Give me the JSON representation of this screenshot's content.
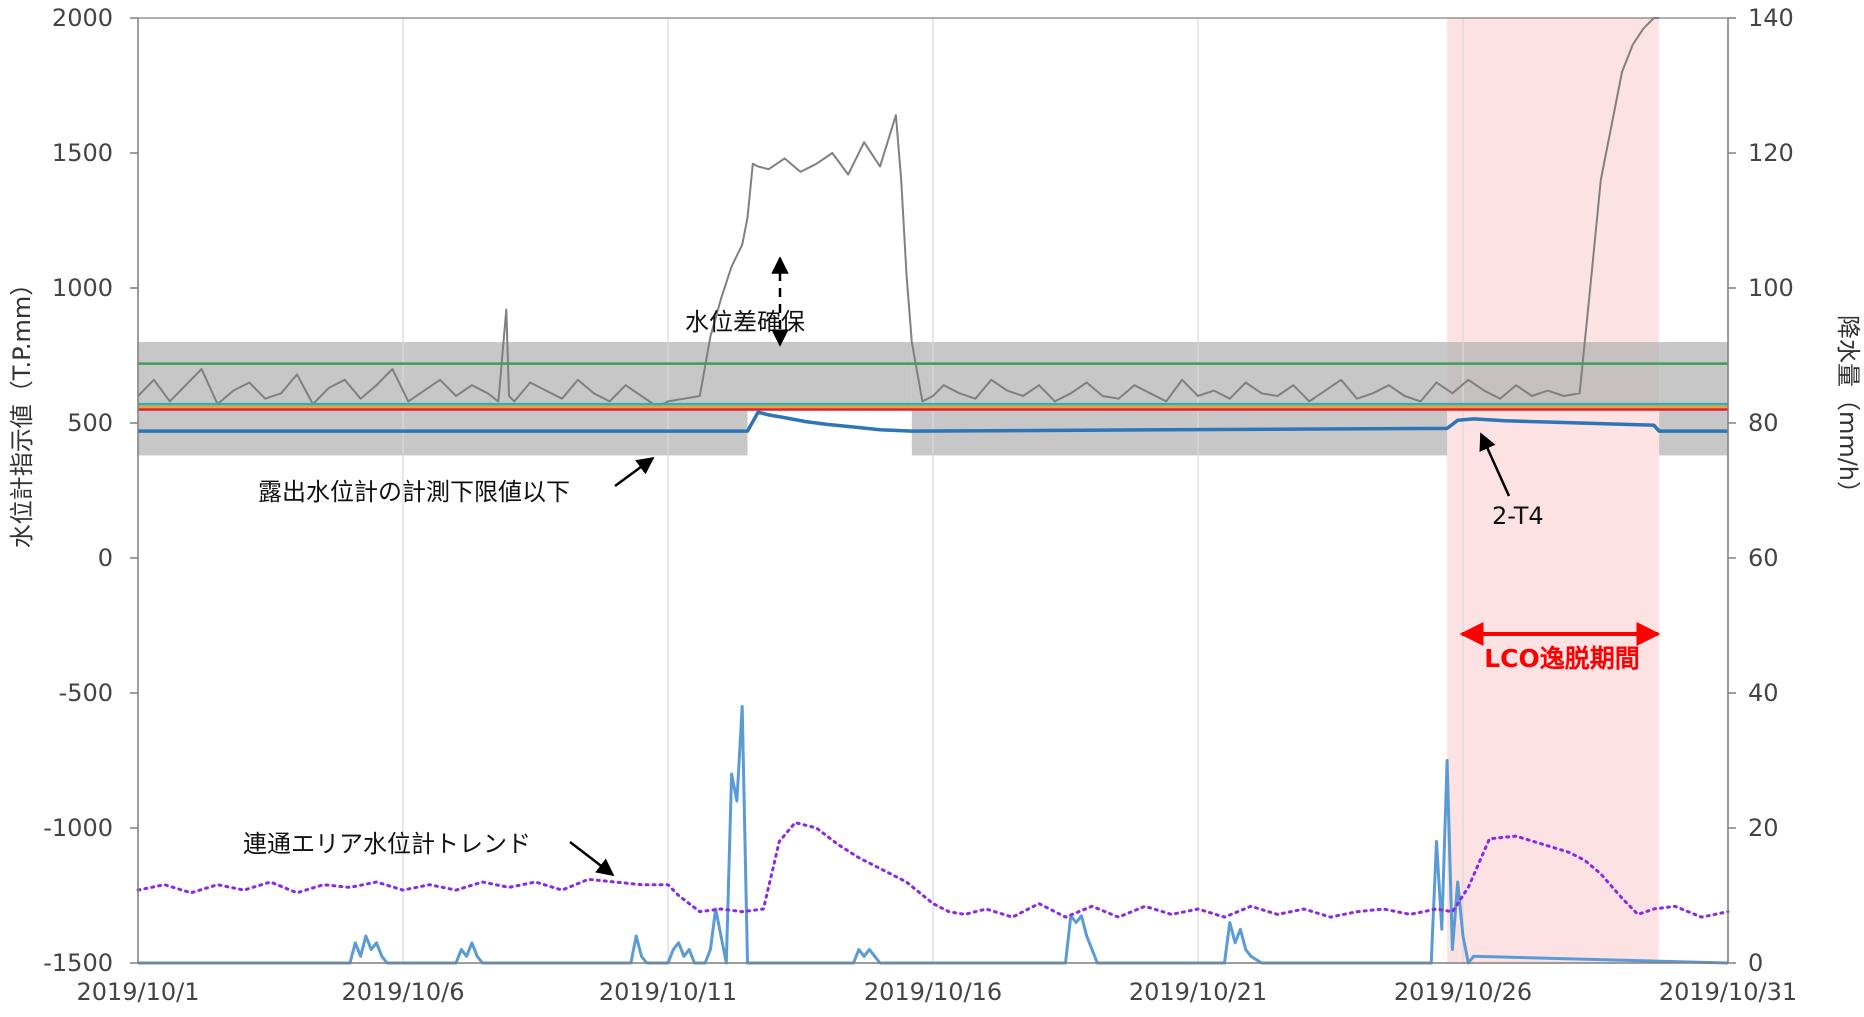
{
  "chart_data": {
    "type": "line",
    "title": "",
    "x_axis": {
      "type": "date",
      "range": [
        "2019/10/1",
        "2019/10/31"
      ],
      "tick_labels": [
        "2019/10/1",
        "2019/10/6",
        "2019/10/11",
        "2019/10/16",
        "2019/10/21",
        "2019/10/26",
        "2019/10/31"
      ],
      "grid": true
    },
    "y_left": {
      "label": "水位計指示値（T.P.mm）",
      "range": [
        -1500,
        2000
      ],
      "tick_labels": [
        "2000",
        "1500",
        "1000",
        "500",
        "0",
        "-500",
        "-1000",
        "-1500"
      ]
    },
    "y_right": {
      "label": "降水量（mm/h）",
      "range": [
        0,
        140
      ],
      "tick_labels": [
        "140",
        "120",
        "100",
        "80",
        "60",
        "40",
        "20",
        "0"
      ]
    },
    "colors": {
      "gray_line": "#808080",
      "green_line": "#3aa05a",
      "red_line": "#e02020",
      "orange_line": "#f0a040",
      "teal_line": "#30b0b0",
      "blue_line": "#2e75b6",
      "rain_line": "#5b9bd5",
      "trend_dots": "#8a2be2",
      "shade_band": "#b4b4b4",
      "lco_band": "#fde2e4",
      "lco_text": "#ff0000"
    },
    "shaded_band": {
      "y_range": [
        380,
        800
      ],
      "excluded_x_ranges": [
        [
          "2019/10/12.5",
          "2019/10/15.6"
        ],
        [
          "2019/10/25.7",
          "2019/10/29.7"
        ]
      ]
    },
    "lco_period": {
      "x_range": [
        "2019/10/25.7",
        "2019/10/29.7"
      ]
    },
    "series": [
      {
        "axis": "left",
        "color_key": "gray_line",
        "x": [
          1,
          1.3,
          1.6,
          1.9,
          2.2,
          2.5,
          2.8,
          3.1,
          3.4,
          3.7,
          4,
          4.3,
          4.6,
          4.9,
          5.2,
          5.5,
          5.8,
          6.1,
          6.4,
          6.7,
          7,
          7.3,
          7.6,
          7.8,
          7.95,
          8.0,
          8.1,
          8.4,
          8.7,
          9,
          9.3,
          9.6,
          9.9,
          10.2,
          10.5,
          10.8,
          11,
          11.3,
          11.6,
          11.8,
          12.0,
          12.2,
          12.4,
          12.5,
          12.6,
          12.7,
          12.9,
          13.2,
          13.5,
          13.8,
          14.1,
          14.4,
          14.7,
          15.0,
          15.3,
          15.4,
          15.5,
          15.6,
          15.8,
          16.0,
          16.2,
          16.5,
          16.8,
          17.1,
          17.4,
          17.7,
          18,
          18.3,
          18.6,
          18.9,
          19.2,
          19.5,
          19.8,
          20.1,
          20.4,
          20.7,
          21,
          21.3,
          21.6,
          21.9,
          22.2,
          22.5,
          22.8,
          23.1,
          23.4,
          23.7,
          24,
          24.3,
          24.6,
          24.9,
          25.2,
          25.5,
          25.8,
          26.1,
          26.4,
          26.7,
          27.0,
          27.3,
          27.6,
          27.9,
          28.2,
          28.4,
          28.6,
          28.8,
          29.0,
          29.2,
          29.4,
          29.6,
          29.7
        ],
        "y": [
          600,
          660,
          580,
          640,
          700,
          570,
          620,
          650,
          590,
          610,
          680,
          570,
          630,
          660,
          590,
          640,
          700,
          580,
          620,
          660,
          600,
          640,
          610,
          580,
          920,
          600,
          580,
          650,
          620,
          590,
          660,
          610,
          580,
          640,
          600,
          560,
          580,
          590,
          600,
          820,
          960,
          1080,
          1160,
          1260,
          1460,
          1450,
          1440,
          1480,
          1430,
          1460,
          1500,
          1420,
          1540,
          1450,
          1640,
          1400,
          1050,
          800,
          580,
          600,
          640,
          610,
          590,
          660,
          620,
          600,
          640,
          580,
          610,
          650,
          600,
          590,
          640,
          610,
          580,
          660,
          600,
          620,
          590,
          650,
          610,
          600,
          640,
          580,
          620,
          660,
          590,
          610,
          640,
          600,
          580,
          650,
          610,
          660,
          620,
          590,
          640,
          600,
          620,
          600,
          610,
          1000,
          1400,
          1600,
          1800,
          1900,
          1960,
          2000,
          2000
        ]
      },
      {
        "axis": "left",
        "color_key": "green_line",
        "x": [
          1,
          31
        ],
        "y": [
          720,
          720
        ]
      },
      {
        "axis": "left",
        "color_key": "teal_line",
        "x": [
          1,
          31
        ],
        "y": [
          570,
          570
        ]
      },
      {
        "axis": "left",
        "color_key": "orange_line",
        "x": [
          1,
          31
        ],
        "y": [
          560,
          560
        ]
      },
      {
        "axis": "left",
        "color_key": "red_line",
        "x": [
          1,
          31
        ],
        "y": [
          550,
          550
        ]
      },
      {
        "axis": "left",
        "color_key": "blue_line",
        "name": "2-T4",
        "x": [
          1,
          12.5,
          12.7,
          12.9,
          13.2,
          13.6,
          14.0,
          14.5,
          15.0,
          15.6,
          25.7,
          25.9,
          26.2,
          26.8,
          27.5,
          28.2,
          28.9,
          29.6,
          29.7,
          31
        ],
        "y": [
          470,
          470,
          540,
          530,
          520,
          505,
          495,
          485,
          475,
          470,
          480,
          510,
          515,
          508,
          504,
          500,
          496,
          492,
          470,
          470
        ]
      },
      {
        "axis": "right",
        "color_key": "rain_line",
        "x": [
          1,
          5.0,
          5.1,
          5.2,
          5.3,
          5.4,
          5.5,
          5.6,
          5.7,
          6,
          6.5,
          7.0,
          7.1,
          7.2,
          7.3,
          7.4,
          7.5,
          10.3,
          10.4,
          10.5,
          10.6,
          11.0,
          11.1,
          11.2,
          11.3,
          11.4,
          11.5,
          11.7,
          11.8,
          11.9,
          12.0,
          12.1,
          12.2,
          12.3,
          12.4,
          12.5,
          12.6,
          12.7,
          12.8,
          13.0,
          14.5,
          14.6,
          14.7,
          14.8,
          14.9,
          15.0,
          18.5,
          18.6,
          18.7,
          18.8,
          18.9,
          19.0,
          19.1,
          19.3,
          20.0,
          21.5,
          21.6,
          21.7,
          21.8,
          21.9,
          22.0,
          22.2,
          25.4,
          25.5,
          25.6,
          25.7,
          25.8,
          25.9,
          26.0,
          26.1,
          26.2,
          31
        ],
        "y": [
          0,
          0,
          3,
          1,
          4,
          2,
          3,
          1,
          0,
          0,
          0,
          0,
          2,
          1,
          3,
          1,
          0,
          0,
          4,
          1,
          0,
          0,
          2,
          3,
          1,
          2,
          0,
          0,
          2,
          8,
          4,
          0,
          28,
          24,
          38,
          0,
          0,
          0,
          0,
          0,
          0,
          2,
          1,
          2,
          1,
          0,
          0,
          7,
          6,
          7,
          4,
          2,
          0,
          0,
          0,
          0,
          6,
          3,
          5,
          2,
          1,
          0,
          0,
          18,
          5,
          30,
          2,
          12,
          4,
          0,
          1,
          0
        ]
      },
      {
        "axis": "left",
        "color_key": "trend_dots",
        "name": "連通エリア水位計トレンド",
        "x": [
          1,
          1.5,
          2,
          2.5,
          3,
          3.5,
          4,
          4.5,
          5,
          5.5,
          6,
          6.5,
          7,
          7.5,
          8,
          8.5,
          9,
          9.5,
          10,
          10.5,
          11,
          11.2,
          11.6,
          12,
          12.4,
          12.8,
          13.1,
          13.4,
          13.8,
          14.2,
          14.6,
          15.0,
          15.5,
          16.0,
          16.3,
          16.6,
          17,
          17.5,
          18,
          18.5,
          19,
          19.5,
          20,
          20.5,
          21,
          21.5,
          22,
          22.5,
          23,
          23.5,
          24,
          24.5,
          25,
          25.5,
          25.8,
          26.1,
          26.5,
          27,
          27.5,
          28,
          28.3,
          28.6,
          29,
          29.3,
          29.6,
          30,
          30.5,
          31
        ],
        "y": [
          -1230,
          -1210,
          -1240,
          -1210,
          -1230,
          -1200,
          -1240,
          -1210,
          -1220,
          -1200,
          -1230,
          -1210,
          -1230,
          -1200,
          -1220,
          -1200,
          -1230,
          -1190,
          -1200,
          -1210,
          -1210,
          -1250,
          -1310,
          -1300,
          -1310,
          -1300,
          -1050,
          -980,
          -1000,
          -1060,
          -1110,
          -1150,
          -1200,
          -1280,
          -1310,
          -1320,
          -1300,
          -1330,
          -1280,
          -1330,
          -1290,
          -1330,
          -1290,
          -1320,
          -1300,
          -1330,
          -1290,
          -1320,
          -1300,
          -1330,
          -1310,
          -1300,
          -1320,
          -1300,
          -1310,
          -1220,
          -1040,
          -1030,
          -1060,
          -1090,
          -1120,
          -1170,
          -1260,
          -1320,
          -1300,
          -1290,
          -1330,
          -1310
        ]
      }
    ],
    "annotations": {
      "diff": "水位差確保",
      "lower_limit": "露出水位計の計測下限値以下",
      "t4": "2-T4",
      "trend": "連通エリア水位計トレンド",
      "lco": "LCO逸脱期間"
    }
  }
}
